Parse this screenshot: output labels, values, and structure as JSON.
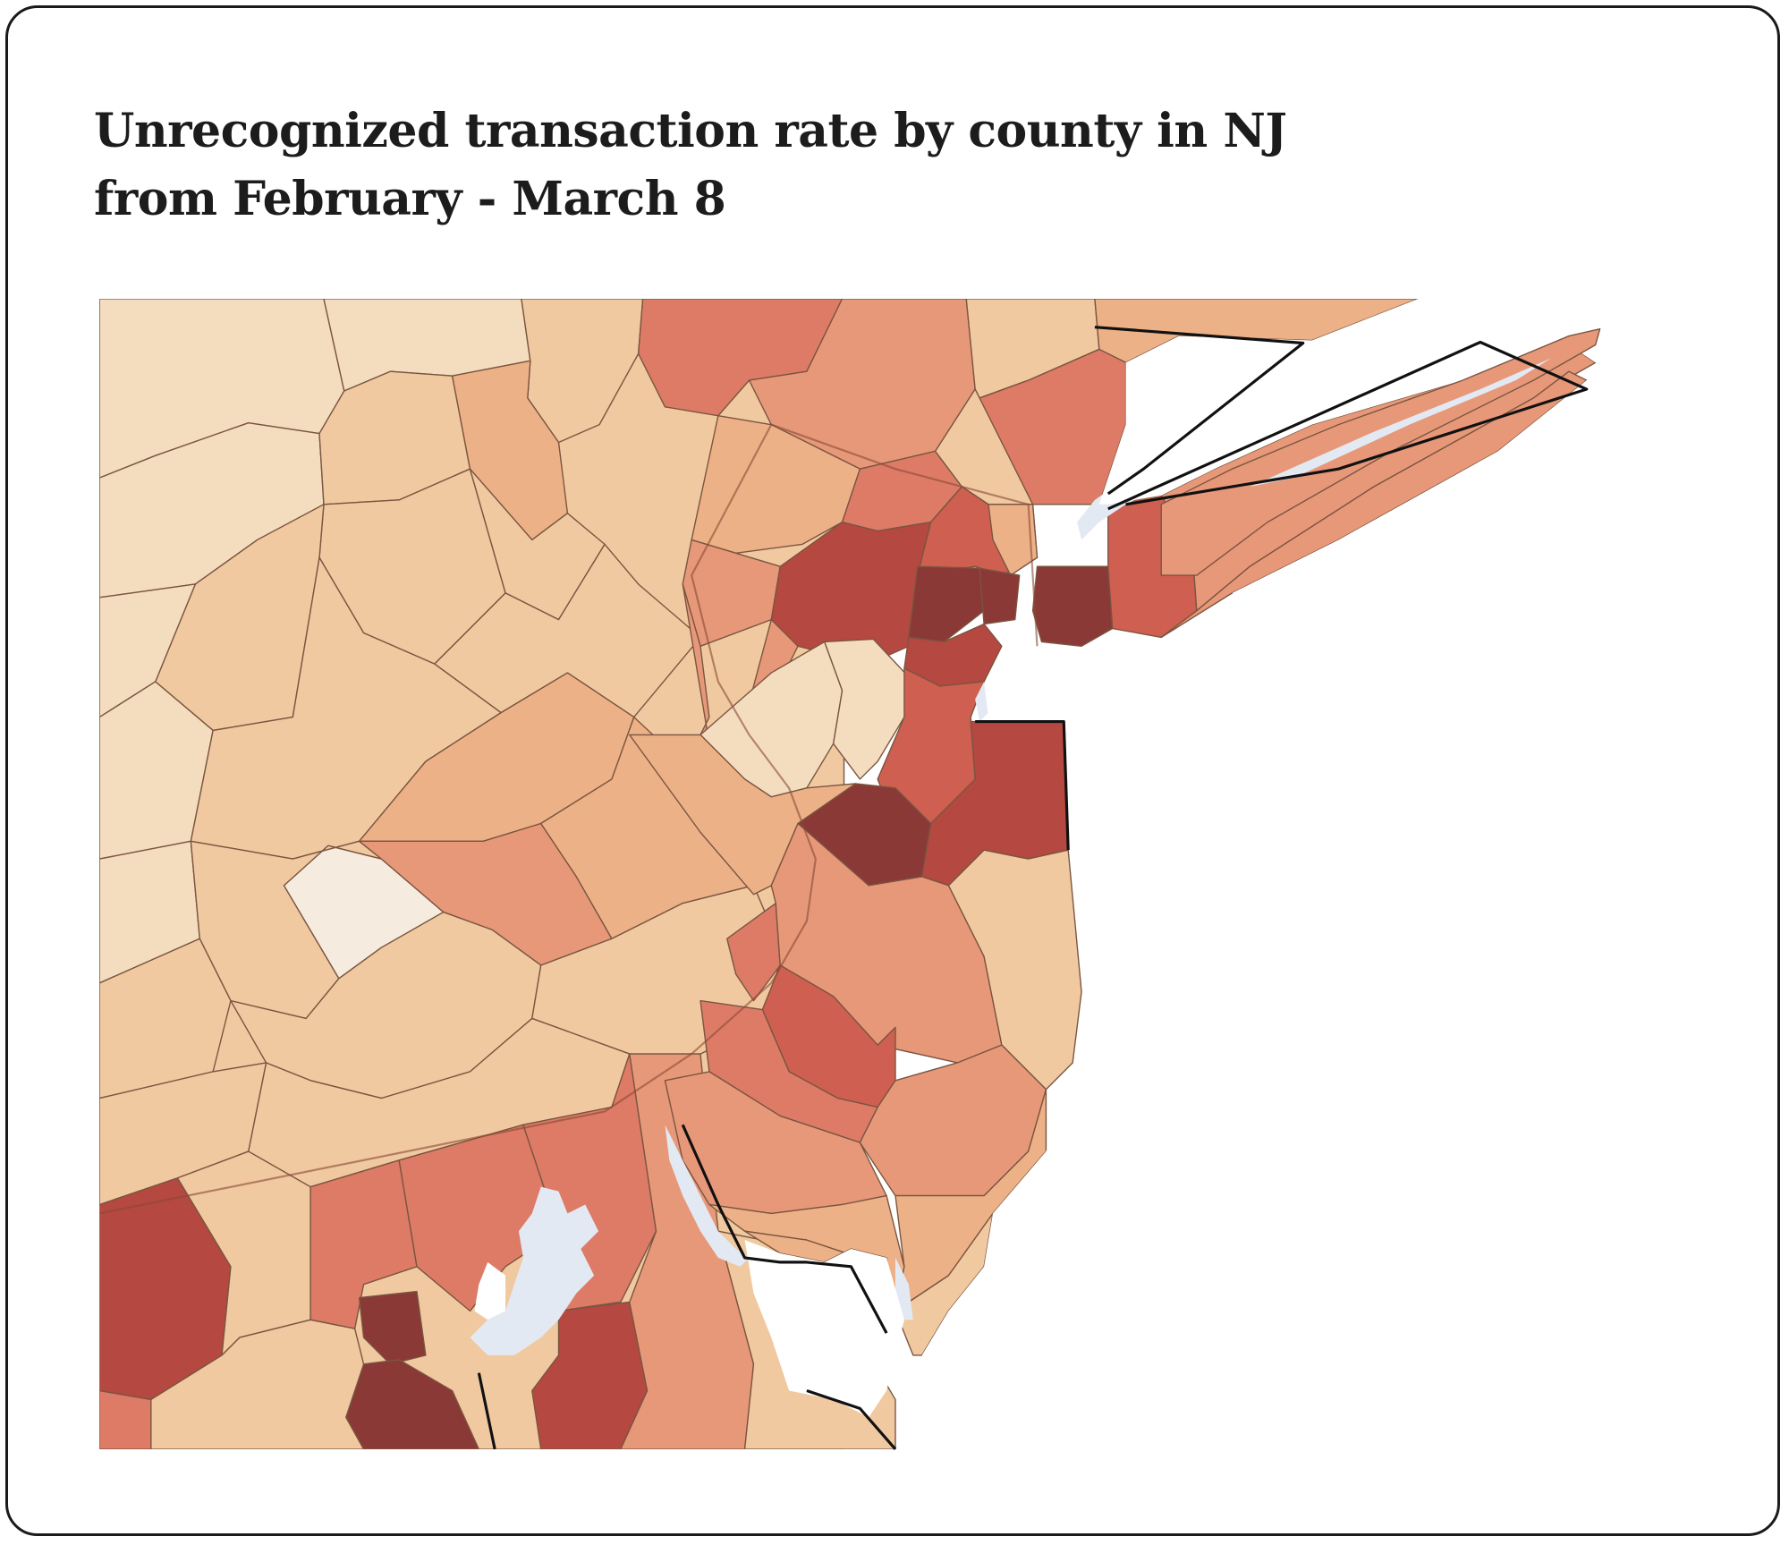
{
  "title": {
    "line1": "Unrecognized transaction rate by county in NJ",
    "line2": "from February - March 8"
  },
  "colors": {
    "water": "#e3e9f3",
    "county_border": "#7a5540",
    "state_outline": "#111111",
    "scale": [
      "#f6ebdf",
      "#f4ddbf",
      "#f0c9a0",
      "#edb187",
      "#e79879",
      "#dd7b67",
      "#cf5f50",
      "#b54840",
      "#8a3936"
    ]
  },
  "map_data": {
    "type": "choropleth",
    "region": "New Jersey and surrounding area",
    "metric": "Unrecognized transaction rate by county"
  }
}
